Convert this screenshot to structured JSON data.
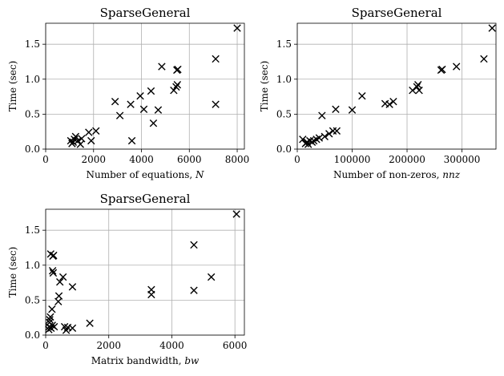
{
  "chart_data": [
    {
      "type": "scatter",
      "title": "SparseGeneral",
      "xlabel": "Number of equations, N",
      "ylabel": "Time (sec)",
      "xlim": [
        0,
        8300
      ],
      "ylim": [
        0,
        1.8
      ],
      "xticks": [
        0,
        2000,
        4000,
        6000,
        8000
      ],
      "xtick_labels": [
        "0",
        "2000",
        "4000",
        "6000",
        "8000"
      ],
      "yticks": [
        0,
        0.5,
        1.0,
        1.5
      ],
      "ytick_labels": [
        "0.0",
        "0.5",
        "1.0",
        "1.5"
      ],
      "grid": true,
      "marker": "x",
      "points": [
        {
          "x": 1050,
          "y": 0.12
        },
        {
          "x": 1100,
          "y": 0.08
        },
        {
          "x": 1150,
          "y": 0.1
        },
        {
          "x": 1200,
          "y": 0.14
        },
        {
          "x": 1250,
          "y": 0.18
        },
        {
          "x": 1350,
          "y": 0.12
        },
        {
          "x": 1450,
          "y": 0.07
        },
        {
          "x": 1500,
          "y": 0.15
        },
        {
          "x": 1800,
          "y": 0.24
        },
        {
          "x": 1900,
          "y": 0.12
        },
        {
          "x": 2100,
          "y": 0.26
        },
        {
          "x": 2900,
          "y": 0.68
        },
        {
          "x": 3100,
          "y": 0.48
        },
        {
          "x": 3550,
          "y": 0.64
        },
        {
          "x": 3600,
          "y": 0.12
        },
        {
          "x": 3950,
          "y": 0.76
        },
        {
          "x": 4100,
          "y": 0.57
        },
        {
          "x": 4400,
          "y": 0.83
        },
        {
          "x": 4500,
          "y": 0.37
        },
        {
          "x": 4700,
          "y": 0.56
        },
        {
          "x": 4850,
          "y": 1.18
        },
        {
          "x": 5350,
          "y": 0.84
        },
        {
          "x": 5450,
          "y": 0.89
        },
        {
          "x": 5500,
          "y": 0.92
        },
        {
          "x": 5480,
          "y": 1.13
        },
        {
          "x": 5520,
          "y": 1.14
        },
        {
          "x": 7100,
          "y": 1.29
        },
        {
          "x": 7100,
          "y": 0.64
        },
        {
          "x": 8000,
          "y": 1.73
        }
      ]
    },
    {
      "type": "scatter",
      "title": "SparseGeneral",
      "xlabel": "Number of non-zeros, nnz",
      "ylabel": "Time (sec)",
      "xlim": [
        0,
        362000
      ],
      "ylim": [
        0,
        1.8
      ],
      "xticks": [
        0,
        100000,
        200000,
        300000
      ],
      "xtick_labels": [
        "0",
        "100000",
        "200000",
        "300000"
      ],
      "yticks": [
        0,
        0.5,
        1.0,
        1.5
      ],
      "ytick_labels": [
        "0.0",
        "0.5",
        "1.0",
        "1.5"
      ],
      "grid": true,
      "marker": "x",
      "points": [
        {
          "x": 10000,
          "y": 0.14
        },
        {
          "x": 15000,
          "y": 0.08
        },
        {
          "x": 18000,
          "y": 0.1
        },
        {
          "x": 20000,
          "y": 0.07
        },
        {
          "x": 23000,
          "y": 0.12
        },
        {
          "x": 27000,
          "y": 0.1
        },
        {
          "x": 30000,
          "y": 0.12
        },
        {
          "x": 35000,
          "y": 0.14
        },
        {
          "x": 40000,
          "y": 0.16
        },
        {
          "x": 45000,
          "y": 0.48
        },
        {
          "x": 50000,
          "y": 0.18
        },
        {
          "x": 58000,
          "y": 0.22
        },
        {
          "x": 65000,
          "y": 0.26
        },
        {
          "x": 70000,
          "y": 0.57
        },
        {
          "x": 72000,
          "y": 0.26
        },
        {
          "x": 100000,
          "y": 0.56
        },
        {
          "x": 118000,
          "y": 0.76
        },
        {
          "x": 160000,
          "y": 0.65
        },
        {
          "x": 168000,
          "y": 0.64
        },
        {
          "x": 175000,
          "y": 0.68
        },
        {
          "x": 210000,
          "y": 0.84
        },
        {
          "x": 218000,
          "y": 0.89
        },
        {
          "x": 220000,
          "y": 0.92
        },
        {
          "x": 222000,
          "y": 0.84
        },
        {
          "x": 262000,
          "y": 1.13
        },
        {
          "x": 264000,
          "y": 1.14
        },
        {
          "x": 290000,
          "y": 1.18
        },
        {
          "x": 340000,
          "y": 1.29
        },
        {
          "x": 355000,
          "y": 1.73
        }
      ]
    },
    {
      "type": "scatter",
      "title": "SparseGeneral",
      "xlabel": "Matrix bandwidth, bw",
      "ylabel": "Time (sec)",
      "xlim": [
        0,
        6300
      ],
      "ylim": [
        0,
        1.8
      ],
      "xticks": [
        0,
        2000,
        4000,
        6000
      ],
      "xtick_labels": [
        "0",
        "2000",
        "4000",
        "6000"
      ],
      "yticks": [
        0,
        0.5,
        1.0,
        1.5
      ],
      "ytick_labels": [
        "0.0",
        "0.5",
        "1.0",
        "1.5"
      ],
      "grid": true,
      "marker": "x",
      "points": [
        {
          "x": 100,
          "y": 0.08
        },
        {
          "x": 110,
          "y": 0.12
        },
        {
          "x": 120,
          "y": 0.18
        },
        {
          "x": 130,
          "y": 0.22
        },
        {
          "x": 150,
          "y": 0.26
        },
        {
          "x": 160,
          "y": 1.16
        },
        {
          "x": 170,
          "y": 0.1
        },
        {
          "x": 200,
          "y": 0.37
        },
        {
          "x": 210,
          "y": 0.14
        },
        {
          "x": 220,
          "y": 0.92
        },
        {
          "x": 230,
          "y": 1.13
        },
        {
          "x": 240,
          "y": 0.89
        },
        {
          "x": 250,
          "y": 1.14
        },
        {
          "x": 270,
          "y": 0.12
        },
        {
          "x": 400,
          "y": 0.48
        },
        {
          "x": 420,
          "y": 0.56
        },
        {
          "x": 450,
          "y": 0.76
        },
        {
          "x": 550,
          "y": 0.83
        },
        {
          "x": 600,
          "y": 0.12
        },
        {
          "x": 650,
          "y": 0.07
        },
        {
          "x": 700,
          "y": 0.11
        },
        {
          "x": 850,
          "y": 0.1
        },
        {
          "x": 850,
          "y": 0.69
        },
        {
          "x": 1400,
          "y": 0.17
        },
        {
          "x": 3350,
          "y": 0.65
        },
        {
          "x": 3350,
          "y": 0.58
        },
        {
          "x": 4700,
          "y": 0.64
        },
        {
          "x": 4700,
          "y": 1.29
        },
        {
          "x": 5250,
          "y": 0.83
        },
        {
          "x": 6050,
          "y": 1.73
        }
      ]
    }
  ]
}
